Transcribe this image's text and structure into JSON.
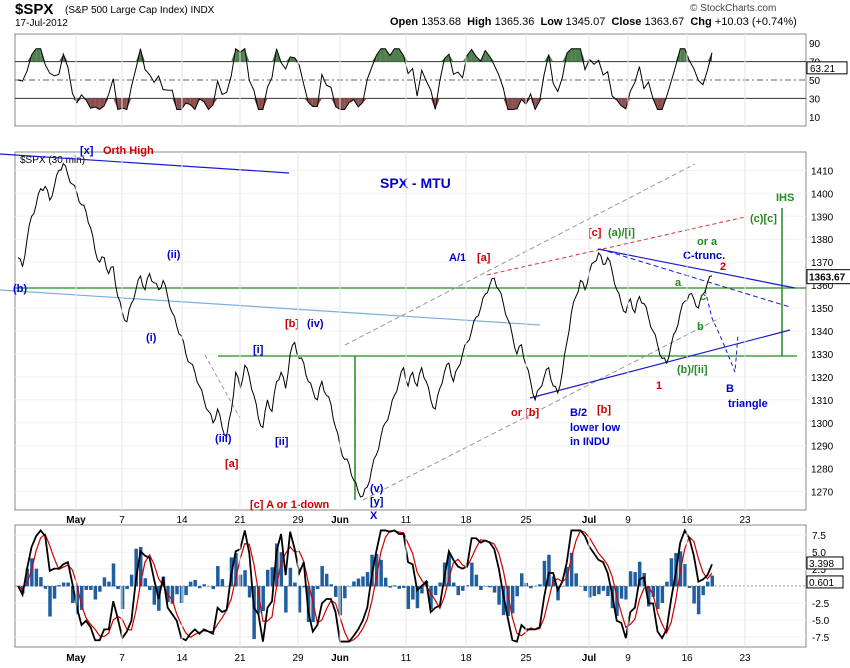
{
  "header": {
    "symbol": "$SPX",
    "name": "(S&P 500 Large Cap Index)",
    "exchange": "INDX",
    "date": "17-Jul-2012",
    "open_label": "Open",
    "open": "1353.68",
    "high_label": "High",
    "high": "1365.36",
    "low_label": "Low",
    "low": "1345.07",
    "close_label": "Close",
    "close": "1363.67",
    "chg_label": "Chg",
    "chg": "+10.03 (+0.74%)",
    "watermark": "© StockCharts.com"
  },
  "colors": {
    "price": "#000000",
    "blue_label": "#0000cc",
    "red_label": "#cc0000",
    "green": "#228b22",
    "rsi_green_fill": "#4f7f4f",
    "rsi_red_fill": "#8b4f4f",
    "macd_line": "#000000",
    "signal_line": "#d00000",
    "histogram": "#1f5fa0",
    "trend_blue": "#1a1acc",
    "light_blue": "#7ab0dd",
    "gray_dash": "#999999",
    "red_dash": "#e03030"
  },
  "chart_data": [
    {
      "type": "line",
      "panel": "RSI",
      "y_ticks": [
        10,
        30,
        50,
        70,
        90
      ],
      "ylim": [
        0,
        100
      ],
      "last_value_label": "63.21",
      "reference_lines": [
        30,
        50,
        70
      ],
      "grid": true
    },
    {
      "type": "line",
      "panel": "Price",
      "title": "SPX - MTU",
      "series_label": "$SPX (30 min)",
      "ylim": [
        1262,
        1418
      ],
      "y_ticks": [
        1270,
        1280,
        1290,
        1300,
        1310,
        1320,
        1330,
        1340,
        1350,
        1360,
        1370,
        1380,
        1390,
        1400,
        1410
      ],
      "last_value_label": "1363.67",
      "x_tick_labels": [
        "May",
        "7",
        "14",
        "21",
        "29",
        "Jun",
        "11",
        "18",
        "25",
        "Jul",
        "9",
        "16",
        "23"
      ],
      "price_path": [
        [
          0,
          1372
        ],
        [
          1,
          1368
        ],
        [
          2,
          1380
        ],
        [
          3,
          1390
        ],
        [
          4,
          1395
        ],
        [
          5,
          1402
        ],
        [
          6,
          1403
        ],
        [
          7,
          1397
        ],
        [
          8,
          1403
        ],
        [
          9,
          1410
        ],
        [
          10,
          1413
        ],
        [
          11,
          1408
        ],
        [
          12,
          1404
        ],
        [
          13,
          1400
        ],
        [
          14,
          1395
        ],
        [
          15,
          1392
        ],
        [
          16,
          1385
        ],
        [
          17,
          1375
        ],
        [
          18,
          1370
        ],
        [
          19,
          1372
        ],
        [
          20,
          1365
        ],
        [
          21,
          1368
        ],
        [
          22,
          1355
        ],
        [
          23,
          1348
        ],
        [
          24,
          1344
        ],
        [
          25,
          1352
        ],
        [
          26,
          1358
        ],
        [
          27,
          1364
        ],
        [
          28,
          1358
        ],
        [
          29,
          1365
        ],
        [
          30,
          1361
        ],
        [
          31,
          1358
        ],
        [
          32,
          1362
        ],
        [
          33,
          1355
        ],
        [
          34,
          1348
        ],
        [
          35,
          1342
        ],
        [
          36,
          1338
        ],
        [
          37,
          1330
        ],
        [
          38,
          1326
        ],
        [
          39,
          1322
        ],
        [
          40,
          1316
        ],
        [
          41,
          1310
        ],
        [
          42,
          1305
        ],
        [
          43,
          1300
        ],
        [
          44,
          1306
        ],
        [
          45,
          1298
        ],
        [
          46,
          1294
        ],
        [
          47,
          1305
        ],
        [
          48,
          1322
        ],
        [
          49,
          1315
        ],
        [
          50,
          1325
        ],
        [
          51,
          1320
        ],
        [
          52,
          1312
        ],
        [
          53,
          1302
        ],
        [
          54,
          1298
        ],
        [
          55,
          1310
        ],
        [
          56,
          1305
        ],
        [
          57,
          1318
        ],
        [
          58,
          1322
        ],
        [
          59,
          1315
        ],
        [
          60,
          1330
        ],
        [
          61,
          1335
        ],
        [
          62,
          1328
        ],
        [
          63,
          1326
        ],
        [
          64,
          1318
        ],
        [
          65,
          1314
        ],
        [
          66,
          1310
        ],
        [
          67,
          1318
        ],
        [
          68,
          1312
        ],
        [
          69,
          1308
        ],
        [
          70,
          1298
        ],
        [
          71,
          1290
        ],
        [
          72,
          1284
        ],
        [
          73,
          1282
        ],
        [
          74,
          1275
        ],
        [
          75,
          1270
        ],
        [
          76,
          1268
        ],
        [
          77,
          1272
        ],
        [
          78,
          1280
        ],
        [
          79,
          1286
        ],
        [
          80,
          1294
        ],
        [
          81,
          1300
        ],
        [
          82,
          1305
        ],
        [
          83,
          1312
        ],
        [
          84,
          1318
        ],
        [
          85,
          1324
        ],
        [
          86,
          1316
        ],
        [
          87,
          1322
        ],
        [
          88,
          1316
        ],
        [
          89,
          1324
        ],
        [
          90,
          1318
        ],
        [
          91,
          1310
        ],
        [
          92,
          1306
        ],
        [
          93,
          1315
        ],
        [
          94,
          1322
        ],
        [
          95,
          1326
        ],
        [
          96,
          1318
        ],
        [
          97,
          1324
        ],
        [
          98,
          1330
        ],
        [
          99,
          1335
        ],
        [
          100,
          1340
        ],
        [
          101,
          1346
        ],
        [
          102,
          1350
        ],
        [
          103,
          1356
        ],
        [
          104,
          1360
        ],
        [
          105,
          1363
        ],
        [
          106,
          1358
        ],
        [
          107,
          1352
        ],
        [
          108,
          1345
        ],
        [
          109,
          1338
        ],
        [
          110,
          1330
        ],
        [
          111,
          1334
        ],
        [
          112,
          1325
        ],
        [
          113,
          1318
        ],
        [
          114,
          1310
        ],
        [
          115,
          1315
        ],
        [
          116,
          1320
        ],
        [
          117,
          1324
        ],
        [
          118,
          1316
        ],
        [
          119,
          1313
        ],
        [
          120,
          1322
        ],
        [
          121,
          1335
        ],
        [
          122,
          1348
        ],
        [
          123,
          1355
        ],
        [
          124,
          1362
        ],
        [
          125,
          1358
        ],
        [
          126,
          1366
        ],
        [
          127,
          1370
        ],
        [
          128,
          1374
        ],
        [
          129,
          1369
        ],
        [
          130,
          1372
        ],
        [
          131,
          1366
        ],
        [
          132,
          1358
        ],
        [
          133,
          1352
        ],
        [
          134,
          1348
        ],
        [
          135,
          1354
        ],
        [
          136,
          1348
        ],
        [
          137,
          1355
        ],
        [
          138,
          1352
        ],
        [
          139,
          1346
        ],
        [
          140,
          1340
        ],
        [
          141,
          1334
        ],
        [
          142,
          1328
        ],
        [
          143,
          1326
        ],
        [
          144,
          1334
        ],
        [
          145,
          1340
        ],
        [
          146,
          1348
        ],
        [
          147,
          1353
        ],
        [
          148,
          1356
        ],
        [
          149,
          1354
        ],
        [
          150,
          1350
        ],
        [
          151,
          1356
        ],
        [
          152,
          1361
        ],
        [
          153,
          1364
        ]
      ],
      "annotations": [
        {
          "text": "[x]",
          "color": "blue_label"
        },
        {
          "text": "Orth High",
          "color": "red_label"
        },
        {
          "text": "(ii)",
          "color": "blue_label"
        },
        {
          "text": "(i)",
          "color": "blue_label"
        },
        {
          "text": "(b)",
          "color": "blue_label"
        },
        {
          "text": "[b]",
          "color": "red_label"
        },
        {
          "text": "(iv)",
          "color": "blue_label"
        },
        {
          "text": "[i]",
          "color": "blue_label"
        },
        {
          "text": "(iii)",
          "color": "blue_label"
        },
        {
          "text": "[ii]",
          "color": "blue_label"
        },
        {
          "text": "[a]",
          "color": "red_label"
        },
        {
          "text": "[c] A or 1-down",
          "color": "red_label"
        },
        {
          "text": "(v)",
          "color": "blue_label"
        },
        {
          "text": "[y]",
          "color": "blue_label"
        },
        {
          "text": "X",
          "color": "blue_label"
        },
        {
          "text": "A/1",
          "color": "blue_label"
        },
        {
          "text": "[a]",
          "color": "red_label"
        },
        {
          "text": "or [b]",
          "color": "red_label"
        },
        {
          "text": "B/2",
          "color": "blue_label"
        },
        {
          "text": "lower low",
          "color": "blue_label"
        },
        {
          "text": "in INDU",
          "color": "blue_label"
        },
        {
          "text": "[b]",
          "color": "red_label"
        },
        {
          "text": "[c]",
          "color": "red_label"
        },
        {
          "text": "(a)/[i]",
          "color": "green"
        },
        {
          "text": "or a",
          "color": "green"
        },
        {
          "text": "C-trunc.",
          "color": "blue_label"
        },
        {
          "text": "2",
          "color": "red_label"
        },
        {
          "text": "a",
          "color": "green"
        },
        {
          "text": "c",
          "color": "green"
        },
        {
          "text": "b",
          "color": "green"
        },
        {
          "text": "(b)/[ii]",
          "color": "green"
        },
        {
          "text": "1",
          "color": "red_label"
        },
        {
          "text": "B",
          "color": "blue_label"
        },
        {
          "text": "triangle",
          "color": "blue_label"
        },
        {
          "text": "(c)[c]",
          "color": "green"
        },
        {
          "text": "IHS",
          "color": "green"
        }
      ]
    },
    {
      "type": "line",
      "panel": "MACD",
      "y_ticks": [
        "7.5",
        "5.0",
        "2.5",
        "-2.5",
        "-5.0",
        "-7.5"
      ],
      "ylim": [
        -9,
        9
      ],
      "macd_value_label": "3.398",
      "hist_value_label": "0.601",
      "x_tick_labels": [
        "May",
        "7",
        "14",
        "21",
        "29",
        "Jun",
        "11",
        "18",
        "25",
        "Jul",
        "9",
        "16",
        "23"
      ]
    }
  ]
}
